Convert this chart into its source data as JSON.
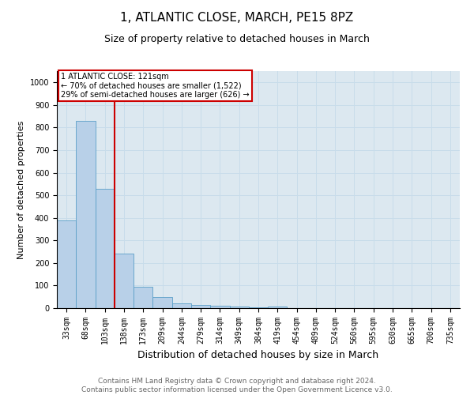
{
  "title1": "1, ATLANTIC CLOSE, MARCH, PE15 8PZ",
  "title2": "Size of property relative to detached houses in March",
  "xlabel": "Distribution of detached houses by size in March",
  "ylabel": "Number of detached properties",
  "categories": [
    "33sqm",
    "68sqm",
    "103sqm",
    "138sqm",
    "173sqm",
    "209sqm",
    "244sqm",
    "279sqm",
    "314sqm",
    "349sqm",
    "384sqm",
    "419sqm",
    "454sqm",
    "489sqm",
    "524sqm",
    "560sqm",
    "595sqm",
    "630sqm",
    "665sqm",
    "700sqm",
    "735sqm"
  ],
  "values": [
    390,
    830,
    530,
    240,
    95,
    50,
    20,
    15,
    12,
    8,
    5,
    8,
    0,
    0,
    0,
    0,
    0,
    0,
    0,
    0,
    0
  ],
  "bar_color": "#b8d0e8",
  "bar_edge_color": "#5a9fc8",
  "vline_color": "#cc0000",
  "annotation_text": "1 ATLANTIC CLOSE: 121sqm\n← 70% of detached houses are smaller (1,522)\n29% of semi-detached houses are larger (626) →",
  "annotation_box_color": "white",
  "annotation_box_edge": "#cc0000",
  "ylim": [
    0,
    1050
  ],
  "yticks": [
    0,
    100,
    200,
    300,
    400,
    500,
    600,
    700,
    800,
    900,
    1000
  ],
  "footnote": "Contains HM Land Registry data © Crown copyright and database right 2024.\nContains public sector information licensed under the Open Government Licence v3.0.",
  "title1_fontsize": 11,
  "title2_fontsize": 9,
  "xlabel_fontsize": 9,
  "ylabel_fontsize": 8,
  "tick_fontsize": 7,
  "footnote_fontsize": 6.5,
  "grid_color": "#c8dcea",
  "background_color": "#dce8f0"
}
